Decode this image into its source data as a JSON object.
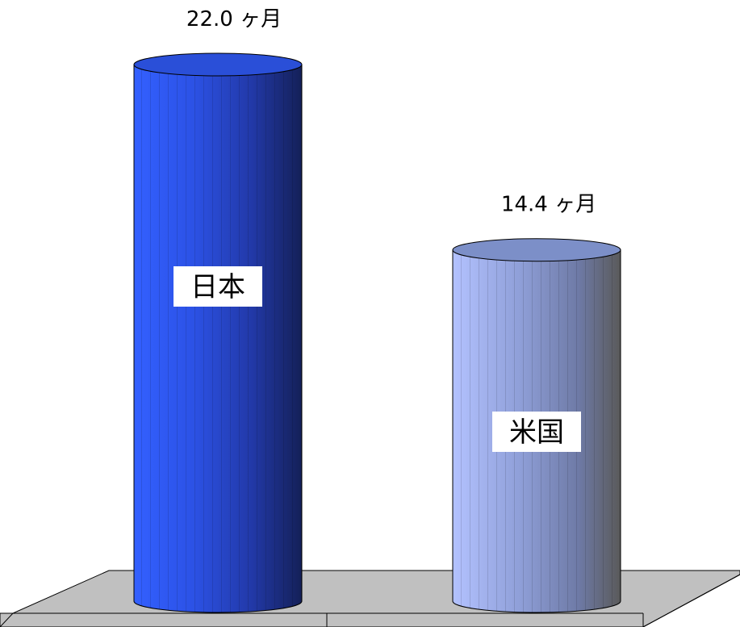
{
  "chart_data": {
    "type": "bar",
    "style": "3d-cylinder",
    "categories": [
      "日本",
      "米国"
    ],
    "values": [
      22.0,
      14.4
    ],
    "value_labels": [
      "22.0 ヶ月",
      "14.4 ヶ月"
    ],
    "title": "",
    "xlabel": "",
    "ylabel": "",
    "ylim": [
      0,
      22.0
    ],
    "grid": false,
    "legend": "none",
    "colors": {
      "bar_0": "#2a4fe6",
      "bar_1": "#a4b3e8",
      "floor": "#c0c0c0"
    }
  }
}
